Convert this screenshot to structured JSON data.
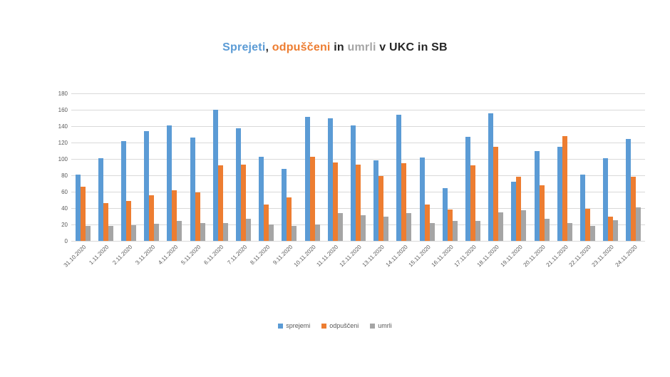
{
  "chart_data": {
    "type": "bar",
    "title": "Sprejeti, odpuščeni in umrli v UKC in SB",
    "title_segments": [
      {
        "text": "Sprejeti",
        "color": "#5b9bd5"
      },
      {
        "text": ", ",
        "color": "#262626"
      },
      {
        "text": "odpuščeni",
        "color": "#ed7d31"
      },
      {
        "text": " in ",
        "color": "#262626"
      },
      {
        "text": "umrli",
        "color": "#a5a5a5"
      },
      {
        "text": " v UKC in SB",
        "color": "#262626"
      }
    ],
    "categories": [
      "31.10.2020",
      "1.11.2020",
      "2.11.2020",
      "3.11.2020",
      "4.11.2020",
      "5.11.2020",
      "6.11.2020",
      "7.11.2020",
      "8.11.2020",
      "9.11.2020",
      "10.11.2020",
      "11.11.2020",
      "12.11.2020",
      "13.11.2020",
      "14.11.2020",
      "15.11.2020",
      "16.11.2020",
      "17.11.2020",
      "18.11.2020",
      "19.11.2020",
      "20.11.2020",
      "21.11.2020",
      "22.11.2020",
      "23.11.2020",
      "24.11.2020"
    ],
    "series": [
      {
        "name": "sprejemi",
        "color": "#5b9bd5",
        "values": [
          81,
          101,
          122,
          134,
          141,
          126,
          160,
          137,
          103,
          88,
          151,
          150,
          141,
          98,
          154,
          102,
          64,
          127,
          156,
          72,
          110,
          115,
          81,
          101,
          124
        ]
      },
      {
        "name": "odpuščeni",
        "color": "#ed7d31",
        "values": [
          66,
          46,
          49,
          56,
          62,
          59,
          92,
          93,
          44,
          53,
          103,
          96,
          93,
          79,
          95,
          44,
          38,
          92,
          115,
          78,
          68,
          128,
          39,
          30,
          78
        ]
      },
      {
        "name": "umrli",
        "color": "#a5a5a5",
        "values": [
          18,
          18,
          19,
          21,
          24,
          22,
          22,
          27,
          20,
          18,
          20,
          34,
          31,
          30,
          34,
          22,
          24,
          24,
          35,
          37,
          27,
          22,
          18,
          25,
          41
        ]
      }
    ],
    "ylim": [
      0,
      180
    ],
    "yticks": [
      0,
      20,
      40,
      60,
      80,
      100,
      120,
      140,
      160,
      180
    ],
    "grid": true,
    "legend_position": "bottom",
    "gridline_color": "#d9d9d9",
    "axis_text_color": "#595959"
  }
}
